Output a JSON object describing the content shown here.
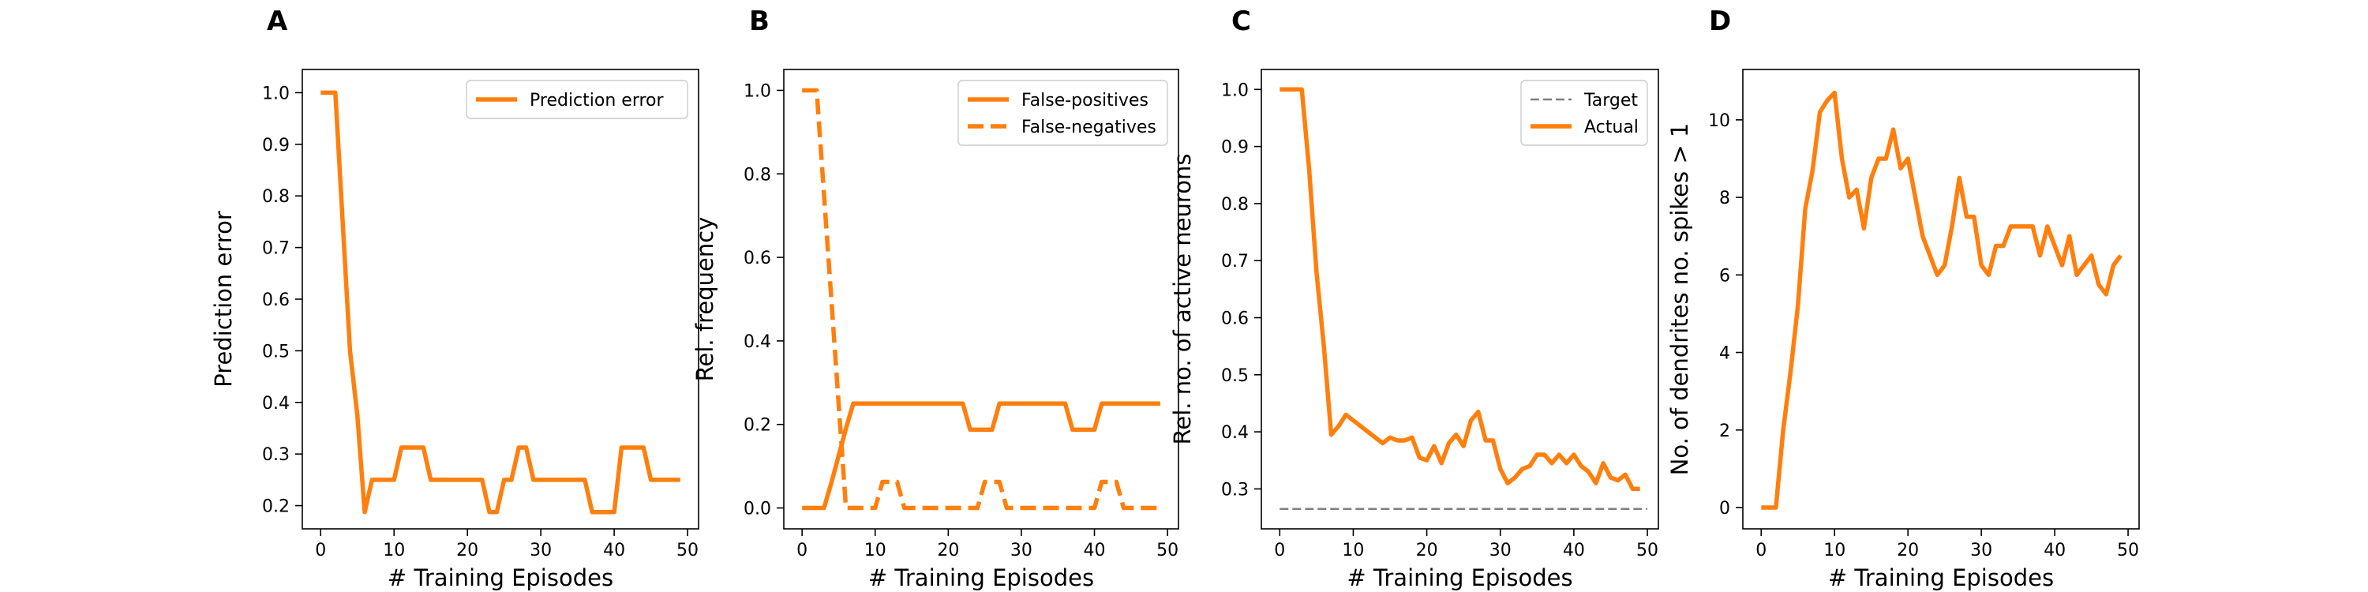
{
  "chart_data": [
    {
      "panel": "A",
      "type": "line",
      "xlabel": "# Training Episodes",
      "ylabel": "Prediction error",
      "xlim": [
        -2.5,
        51.5
      ],
      "ylim": [
        0.155,
        1.045
      ],
      "xticks": [
        0,
        10,
        20,
        30,
        40,
        50
      ],
      "yticks": [
        0.2,
        0.3,
        0.4,
        0.5,
        0.6,
        0.7,
        0.8,
        0.9,
        1.0
      ],
      "ytick_labels": [
        "0.2",
        "0.3",
        "0.4",
        "0.5",
        "0.6",
        "0.7",
        "0.8",
        "0.9",
        "1.0"
      ],
      "legend_position": "top-right",
      "series": [
        {
          "name": "Prediction error",
          "color": "#ff7f0e",
          "dash": "solid",
          "x": [
            0,
            1,
            2,
            3,
            4,
            5,
            6,
            7,
            8,
            9,
            10,
            11,
            12,
            13,
            14,
            15,
            16,
            17,
            18,
            19,
            20,
            21,
            22,
            23,
            24,
            25,
            26,
            27,
            28,
            29,
            30,
            31,
            32,
            33,
            34,
            35,
            36,
            37,
            38,
            39,
            40,
            41,
            42,
            43,
            44,
            45,
            46,
            47,
            48,
            49
          ],
          "y": [
            1.0,
            1.0,
            1.0,
            0.75,
            0.5,
            0.375,
            0.1875,
            0.25,
            0.25,
            0.25,
            0.25,
            0.3125,
            0.3125,
            0.3125,
            0.3125,
            0.25,
            0.25,
            0.25,
            0.25,
            0.25,
            0.25,
            0.25,
            0.25,
            0.1875,
            0.1875,
            0.25,
            0.25,
            0.3125,
            0.3125,
            0.25,
            0.25,
            0.25,
            0.25,
            0.25,
            0.25,
            0.25,
            0.25,
            0.1875,
            0.1875,
            0.1875,
            0.1875,
            0.3125,
            0.3125,
            0.3125,
            0.3125,
            0.25,
            0.25,
            0.25,
            0.25,
            0.25
          ]
        }
      ]
    },
    {
      "panel": "B",
      "type": "line",
      "xlabel": "# Training Episodes",
      "ylabel": "Rel. frequency",
      "xlim": [
        -2.5,
        51.5
      ],
      "ylim": [
        -0.05,
        1.05
      ],
      "xticks": [
        0,
        10,
        20,
        30,
        40,
        50
      ],
      "yticks": [
        0.0,
        0.2,
        0.4,
        0.6,
        0.8,
        1.0
      ],
      "ytick_labels": [
        "0.0",
        "0.2",
        "0.4",
        "0.6",
        "0.8",
        "1.0"
      ],
      "legend_position": "top-right",
      "series": [
        {
          "name": "False-positives",
          "color": "#ff7f0e",
          "dash": "solid",
          "x": [
            0,
            1,
            2,
            3,
            4,
            5,
            6,
            7,
            8,
            9,
            10,
            11,
            12,
            13,
            14,
            15,
            16,
            17,
            18,
            19,
            20,
            21,
            22,
            23,
            24,
            25,
            26,
            27,
            28,
            29,
            30,
            31,
            32,
            33,
            34,
            35,
            36,
            37,
            38,
            39,
            40,
            41,
            42,
            43,
            44,
            45,
            46,
            47,
            48,
            49
          ],
          "y": [
            0,
            0,
            0,
            0,
            0.06,
            0.125,
            0.19,
            0.25,
            0.25,
            0.25,
            0.25,
            0.25,
            0.25,
            0.25,
            0.25,
            0.25,
            0.25,
            0.25,
            0.25,
            0.25,
            0.25,
            0.25,
            0.25,
            0.1875,
            0.1875,
            0.1875,
            0.1875,
            0.25,
            0.25,
            0.25,
            0.25,
            0.25,
            0.25,
            0.25,
            0.25,
            0.25,
            0.25,
            0.1875,
            0.1875,
            0.1875,
            0.1875,
            0.25,
            0.25,
            0.25,
            0.25,
            0.25,
            0.25,
            0.25,
            0.25,
            0.25
          ]
        },
        {
          "name": "False-negatives",
          "color": "#ff7f0e",
          "dash": "dashed",
          "x": [
            0,
            1,
            2,
            3,
            4,
            5,
            6,
            7,
            8,
            9,
            10,
            11,
            12,
            13,
            14,
            15,
            16,
            17,
            18,
            19,
            20,
            21,
            22,
            23,
            24,
            25,
            26,
            27,
            28,
            29,
            30,
            31,
            32,
            33,
            34,
            35,
            36,
            37,
            38,
            39,
            40,
            41,
            42,
            43,
            44,
            45,
            46,
            47,
            48,
            49
          ],
          "y": [
            1.0,
            1.0,
            1.0,
            0.75,
            0.5,
            0.25,
            0,
            0,
            0,
            0,
            0,
            0.0625,
            0.0625,
            0.0625,
            0,
            0,
            0,
            0,
            0,
            0,
            0,
            0,
            0,
            0,
            0,
            0.0625,
            0.0625,
            0.0625,
            0,
            0,
            0,
            0,
            0,
            0,
            0,
            0,
            0,
            0,
            0,
            0,
            0,
            0.0625,
            0.0625,
            0.0625,
            0,
            0,
            0,
            0,
            0,
            0
          ]
        }
      ]
    },
    {
      "panel": "C",
      "type": "line",
      "xlabel": "# Training Episodes",
      "ylabel": "Rel. no. of active neurons",
      "xlim": [
        -2.5,
        51.5
      ],
      "ylim": [
        0.23,
        1.035
      ],
      "xticks": [
        0,
        10,
        20,
        30,
        40,
        50
      ],
      "yticks": [
        0.3,
        0.4,
        0.5,
        0.6,
        0.7,
        0.8,
        0.9,
        1.0
      ],
      "ytick_labels": [
        "0.3",
        "0.4",
        "0.5",
        "0.6",
        "0.7",
        "0.8",
        "0.9",
        "1.0"
      ],
      "legend_position": "top-right",
      "series": [
        {
          "name": "Target",
          "color": "#7f7f7f",
          "dash": "dashed",
          "x": [
            0,
            50
          ],
          "y": [
            0.265,
            0.265
          ]
        },
        {
          "name": "Actual",
          "color": "#ff7f0e",
          "dash": "solid",
          "x": [
            0,
            1,
            2,
            3,
            4,
            5,
            6,
            7,
            8,
            9,
            10,
            11,
            12,
            13,
            14,
            15,
            16,
            17,
            18,
            19,
            20,
            21,
            22,
            23,
            24,
            25,
            26,
            27,
            28,
            29,
            30,
            31,
            32,
            33,
            34,
            35,
            36,
            37,
            38,
            39,
            40,
            41,
            42,
            43,
            44,
            45,
            46,
            47,
            48,
            49
          ],
          "y": [
            1.0,
            1.0,
            1.0,
            1.0,
            0.86,
            0.68,
            0.55,
            0.395,
            0.41,
            0.43,
            0.42,
            0.41,
            0.4,
            0.39,
            0.38,
            0.39,
            0.385,
            0.385,
            0.39,
            0.355,
            0.35,
            0.375,
            0.345,
            0.38,
            0.395,
            0.375,
            0.42,
            0.435,
            0.385,
            0.385,
            0.335,
            0.31,
            0.32,
            0.335,
            0.34,
            0.36,
            0.36,
            0.345,
            0.36,
            0.345,
            0.36,
            0.34,
            0.33,
            0.31,
            0.345,
            0.32,
            0.315,
            0.325,
            0.3,
            0.3
          ]
        }
      ]
    },
    {
      "panel": "D",
      "type": "line",
      "xlabel": "# Training Episodes",
      "ylabel": "No. of dendrites no. spikes > 1",
      "xlim": [
        -2.5,
        51.5
      ],
      "ylim": [
        -0.55,
        11.3
      ],
      "xticks": [
        0,
        10,
        20,
        30,
        40,
        50
      ],
      "yticks": [
        0,
        2,
        4,
        6,
        8,
        10
      ],
      "ytick_labels": [
        "0",
        "2",
        "4",
        "6",
        "8",
        "10"
      ],
      "series": [
        {
          "name": "",
          "color": "#ff7f0e",
          "dash": "solid",
          "x": [
            0,
            1,
            2,
            3,
            4,
            5,
            6,
            7,
            8,
            9,
            10,
            11,
            12,
            13,
            14,
            15,
            16,
            17,
            18,
            19,
            20,
            21,
            22,
            23,
            24,
            25,
            26,
            27,
            28,
            29,
            30,
            31,
            32,
            33,
            34,
            35,
            36,
            37,
            38,
            39,
            40,
            41,
            42,
            43,
            44,
            45,
            46,
            47,
            48,
            49
          ],
          "y": [
            0,
            0,
            0,
            2,
            3.5,
            5.2,
            7.7,
            8.7,
            10.2,
            10.5,
            10.7,
            9.0,
            8.0,
            8.2,
            7.2,
            8.5,
            9.0,
            9.0,
            9.75,
            8.75,
            9.0,
            8.0,
            7.0,
            6.5,
            6.0,
            6.25,
            7.25,
            8.5,
            7.5,
            7.5,
            6.25,
            6.0,
            6.75,
            6.75,
            7.25,
            7.25,
            7.25,
            7.25,
            6.5,
            7.25,
            6.75,
            6.25,
            7.0,
            6.0,
            6.25,
            6.5,
            5.75,
            5.5,
            6.25,
            6.5
          ]
        }
      ]
    }
  ]
}
